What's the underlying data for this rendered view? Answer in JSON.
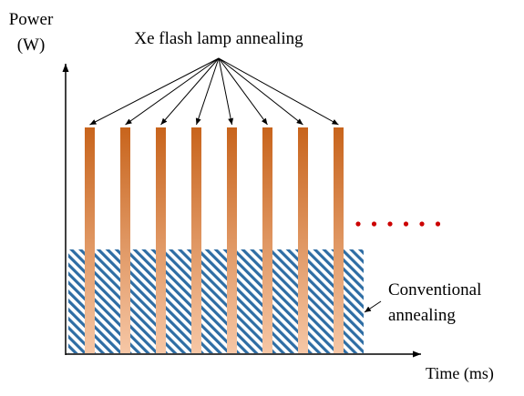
{
  "axes": {
    "y_label_line1": "Power",
    "y_label_line2": "(W)",
    "x_label": "Time (ms)"
  },
  "flash": {
    "label": "Xe flash lamp annealing",
    "pulse_count": 8,
    "color_top": "#c8641c",
    "color_bottom": "#f6c7a6"
  },
  "conventional": {
    "label_line1": "Conventional",
    "label_line2": "annealing",
    "hatch_color": "#2e6da4"
  },
  "continuation": {
    "dot_count": 6,
    "color": "#cc0000"
  }
}
